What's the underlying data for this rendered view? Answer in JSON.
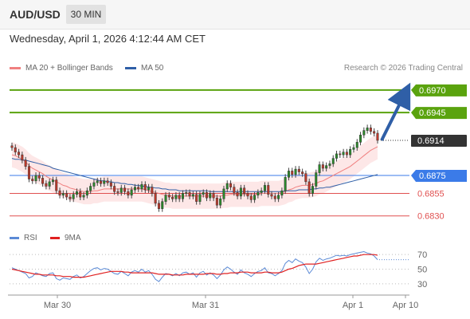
{
  "header": {
    "symbol": "AUD/USD",
    "timeframe": "30 MIN"
  },
  "datetime": "Wednesday, April 1, 2026 4:12:44 AM CET",
  "legend": {
    "ma20": {
      "label": "MA 20 + Bollinger Bands",
      "color": "#f08080"
    },
    "ma50": {
      "label": "MA 50",
      "color": "#2f5fa7"
    }
  },
  "research": "Research © 2026 Trading Central",
  "rsi_legend": {
    "rsi": {
      "label": "RSI",
      "color": "#5b8ad6"
    },
    "ma9": {
      "label": "9MA",
      "color": "#e02020"
    }
  },
  "chart_data": [
    {
      "type": "candlestick",
      "x_axis_labels": [
        "Mar 30",
        "Mar 31",
        "Apr 1",
        "Apr 10"
      ],
      "ylim": [
        0.682,
        0.6985
      ],
      "levels": [
        {
          "value": 0.697,
          "label": "0.6970",
          "color": "#5aa30e",
          "style": "resistance"
        },
        {
          "value": 0.6945,
          "label": "0.6945",
          "color": "#5aa30e",
          "style": "resistance"
        },
        {
          "value": 0.6914,
          "label": "0.6914",
          "color": "#333333",
          "style": "current"
        },
        {
          "value": 0.6875,
          "label": "0.6875",
          "color": "#3b7be8",
          "style": "pivot"
        },
        {
          "value": 0.6855,
          "label": "0.6855",
          "color": "#e05050",
          "style": "support"
        },
        {
          "value": 0.683,
          "label": "0.6830",
          "color": "#e05050",
          "style": "support"
        }
      ],
      "candles_close": [
        0.6906,
        0.6901,
        0.6898,
        0.6892,
        0.6885,
        0.6871,
        0.6869,
        0.6875,
        0.6872,
        0.6866,
        0.6863,
        0.6868,
        0.687,
        0.6858,
        0.6853,
        0.6855,
        0.6851,
        0.6849,
        0.6854,
        0.6857,
        0.6851,
        0.6853,
        0.6858,
        0.6863,
        0.6867,
        0.6869,
        0.6866,
        0.6869,
        0.6867,
        0.6863,
        0.6857,
        0.6856,
        0.6861,
        0.6857,
        0.6853,
        0.6859,
        0.6862,
        0.686,
        0.6865,
        0.6859,
        0.6862,
        0.6855,
        0.6844,
        0.6838,
        0.6846,
        0.6853,
        0.6851,
        0.6849,
        0.6853,
        0.6849,
        0.6855,
        0.6856,
        0.6852,
        0.6854,
        0.6846,
        0.6854,
        0.6856,
        0.685,
        0.6855,
        0.685,
        0.6842,
        0.6849,
        0.686,
        0.6866,
        0.6862,
        0.6856,
        0.6852,
        0.6861,
        0.6855,
        0.6852,
        0.6848,
        0.6853,
        0.6856,
        0.6858,
        0.6864,
        0.6854,
        0.6852,
        0.6849,
        0.6853,
        0.6858,
        0.6873,
        0.688,
        0.6876,
        0.6882,
        0.6879,
        0.6877,
        0.6868,
        0.6855,
        0.6863,
        0.6878,
        0.6887,
        0.6883,
        0.6886,
        0.6888,
        0.6894,
        0.6899,
        0.6898,
        0.6901,
        0.6898,
        0.6904,
        0.6906,
        0.6912,
        0.692,
        0.6925,
        0.6928,
        0.6924,
        0.6922,
        0.6914
      ],
      "ma20": [
        0.6898,
        0.6897,
        0.6895,
        0.6893,
        0.689,
        0.6886,
        0.6883,
        0.6881,
        0.6879,
        0.6877,
        0.6874,
        0.6872,
        0.687,
        0.6868,
        0.6866,
        0.6864,
        0.6863,
        0.6861,
        0.686,
        0.6859,
        0.6858,
        0.6857,
        0.6857,
        0.6857,
        0.6858,
        0.6858,
        0.6859,
        0.686,
        0.686,
        0.686,
        0.686,
        0.686,
        0.686,
        0.686,
        0.686,
        0.686,
        0.686,
        0.686,
        0.686,
        0.6859,
        0.6858,
        0.6857,
        0.6856,
        0.6855,
        0.6854,
        0.6853,
        0.6853,
        0.6852,
        0.6852,
        0.6852,
        0.6852,
        0.6852,
        0.6852,
        0.6852,
        0.6852,
        0.6852,
        0.6852,
        0.6852,
        0.6852,
        0.6852,
        0.6852,
        0.6852,
        0.6853,
        0.6853,
        0.6854,
        0.6854,
        0.6854,
        0.6854,
        0.6854,
        0.6854,
        0.6854,
        0.6854,
        0.6854,
        0.6855,
        0.6855,
        0.6855,
        0.6855,
        0.6855,
        0.6855,
        0.6856,
        0.6857,
        0.6859,
        0.686,
        0.6862,
        0.6863,
        0.6864,
        0.6864,
        0.6864,
        0.6865,
        0.6866,
        0.6868,
        0.6869,
        0.6871,
        0.6873,
        0.6875,
        0.6877,
        0.6879,
        0.6881,
        0.6883,
        0.6885,
        0.6888,
        0.6891,
        0.6894,
        0.6897,
        0.69,
        0.6903,
        0.6905,
        0.6907
      ],
      "bollinger_width": 0.0014,
      "ma50": [
        0.6894,
        0.6893,
        0.6893,
        0.6892,
        0.6892,
        0.6891,
        0.689,
        0.6889,
        0.6888,
        0.6887,
        0.6886,
        0.6885,
        0.6883,
        0.6882,
        0.6881,
        0.688,
        0.6879,
        0.6878,
        0.6877,
        0.6876,
        0.6875,
        0.6874,
        0.6873,
        0.6872,
        0.6871,
        0.687,
        0.6869,
        0.6869,
        0.6868,
        0.6868,
        0.6867,
        0.6867,
        0.6866,
        0.6866,
        0.6865,
        0.6865,
        0.6864,
        0.6864,
        0.6863,
        0.6863,
        0.6862,
        0.6862,
        0.6861,
        0.6861,
        0.686,
        0.686,
        0.6859,
        0.6859,
        0.6859,
        0.6858,
        0.6858,
        0.6858,
        0.6858,
        0.6858,
        0.6858,
        0.6858,
        0.6858,
        0.6858,
        0.6857,
        0.6857,
        0.6857,
        0.6857,
        0.6857,
        0.6857,
        0.6857,
        0.6857,
        0.6857,
        0.6857,
        0.6857,
        0.6857,
        0.6857,
        0.6857,
        0.6857,
        0.6857,
        0.6857,
        0.6857,
        0.6857,
        0.6857,
        0.6857,
        0.6857,
        0.6858,
        0.6858,
        0.6858,
        0.6858,
        0.6859,
        0.6859,
        0.6859,
        0.6859,
        0.686,
        0.686,
        0.6861,
        0.6861,
        0.6862,
        0.6862,
        0.6863,
        0.6864,
        0.6865,
        0.6866,
        0.6867,
        0.6868,
        0.6869,
        0.687,
        0.6871,
        0.6872,
        0.6873,
        0.6874,
        0.6875,
        0.6876
      ],
      "projection_arrow": {
        "from": 0.6914,
        "to": 0.697
      }
    },
    {
      "type": "line",
      "name": "RSI",
      "y_ticks": [
        70,
        50,
        30
      ],
      "ylim": [
        20,
        80
      ],
      "rsi": [
        52,
        50,
        48,
        46,
        44,
        38,
        40,
        45,
        43,
        41,
        40,
        44,
        45,
        37,
        35,
        38,
        37,
        36,
        40,
        42,
        38,
        40,
        44,
        48,
        51,
        52,
        49,
        51,
        50,
        47,
        44,
        43,
        47,
        44,
        41,
        46,
        48,
        46,
        50,
        46,
        48,
        43,
        36,
        33,
        39,
        44,
        43,
        41,
        44,
        41,
        45,
        46,
        43,
        45,
        39,
        45,
        47,
        42,
        45,
        42,
        37,
        42,
        49,
        53,
        50,
        46,
        43,
        49,
        45,
        43,
        40,
        44,
        47,
        48,
        52,
        45,
        44,
        41,
        44,
        48,
        58,
        62,
        59,
        64,
        61,
        59,
        53,
        44,
        50,
        60,
        65,
        62,
        64,
        65,
        67,
        69,
        68,
        69,
        68,
        70,
        71,
        72,
        73,
        74,
        72,
        71,
        68,
        63
      ],
      "ma9": [
        50,
        49,
        48,
        47,
        46,
        45,
        44,
        43,
        43,
        42,
        42,
        42,
        42,
        41,
        41,
        40,
        40,
        40,
        39,
        39,
        39,
        39,
        40,
        41,
        42,
        43,
        44,
        45,
        46,
        47,
        47,
        47,
        47,
        46,
        46,
        45,
        45,
        45,
        45,
        45,
        45,
        45,
        44,
        43,
        43,
        43,
        43,
        42,
        42,
        42,
        42,
        43,
        43,
        43,
        43,
        43,
        43,
        44,
        44,
        44,
        43,
        43,
        44,
        44,
        45,
        45,
        45,
        46,
        46,
        46,
        45,
        45,
        45,
        45,
        46,
        46,
        45,
        45,
        45,
        46,
        48,
        50,
        51,
        53,
        55,
        56,
        57,
        57,
        57,
        57,
        58,
        59,
        60,
        61,
        62,
        63,
        64,
        65,
        66,
        67,
        68,
        68,
        69,
        70,
        70,
        70,
        70,
        69
      ]
    }
  ]
}
